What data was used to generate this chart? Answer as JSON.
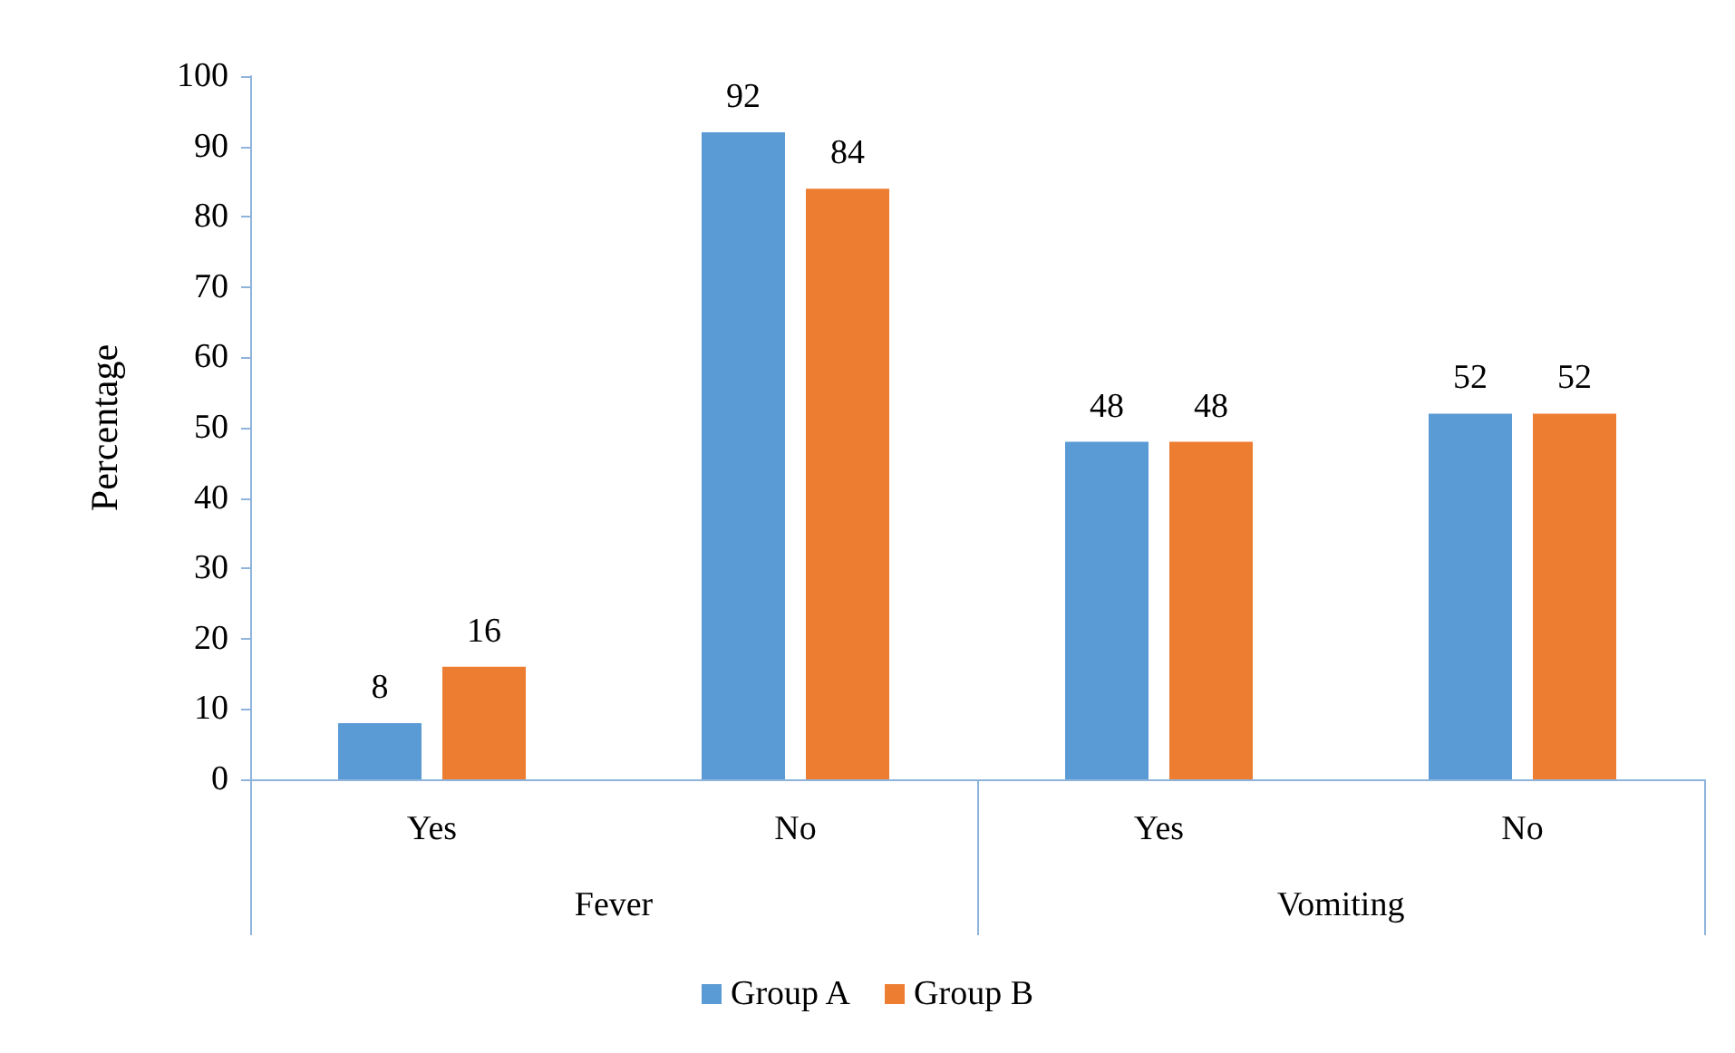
{
  "chart_data": {
    "type": "bar",
    "ylabel": "Percentage",
    "categories": [
      "Yes",
      "No",
      "Yes",
      "No"
    ],
    "annotations": [
      "Fever",
      "Vomiting"
    ],
    "series": [
      {
        "name": "Group A",
        "color": "#5b9bd5",
        "values": [
          8,
          92,
          48,
          52
        ]
      },
      {
        "name": "Group B",
        "color": "#ed7d31",
        "values": [
          16,
          84,
          48,
          52
        ]
      }
    ],
    "ylim": [
      0,
      100
    ],
    "yticks": [
      0,
      10,
      20,
      30,
      40,
      50,
      60,
      70,
      80,
      90,
      100
    ],
    "grid": false,
    "legend": "bottom",
    "data_labels": true
  }
}
